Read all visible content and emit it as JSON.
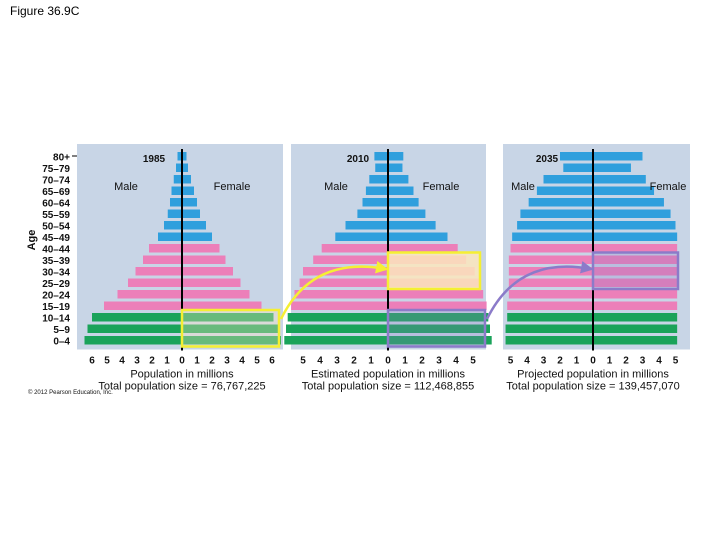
{
  "figure_title": "Figure 36.9C",
  "copyright": "© 2012 Pearson Education, Inc.",
  "chart_data": {
    "type": "bar",
    "subtype": "population-pyramid",
    "ylabel": "Age",
    "age_groups": [
      "80+",
      "75–79",
      "70–74",
      "65–69",
      "60–64",
      "55–59",
      "50–54",
      "45–49",
      "40–44",
      "35–39",
      "30–34",
      "25–29",
      "20–24",
      "15–19",
      "10–14",
      "5–9",
      "0–4"
    ],
    "colors": {
      "older": "#2f9fdd",
      "reproductive": "#ec7fb9",
      "young": "#1aa35a",
      "panel": "#c8d5e6",
      "highlight_yellow": "#f5ef33",
      "highlight_purple": "#8b7bc9",
      "highlight_fill": "#fbe6bc"
    },
    "pyramids": [
      {
        "year": "1985",
        "male_label": "Male",
        "female_label": "Female",
        "xlabel": "Population in millions",
        "total_label": "Total population size = 76,767,225",
        "x_ticks": [
          "6",
          "5",
          "4",
          "3",
          "2",
          "1",
          "0",
          "1",
          "2",
          "3",
          "4",
          "5",
          "6"
        ],
        "male": [
          0.3,
          0.4,
          0.55,
          0.7,
          0.8,
          0.95,
          1.2,
          1.6,
          2.2,
          2.6,
          3.1,
          3.6,
          4.3,
          5.2,
          6.0,
          6.3,
          6.5
        ],
        "female": [
          0.3,
          0.4,
          0.6,
          0.8,
          1.0,
          1.2,
          1.6,
          2.0,
          2.5,
          2.9,
          3.4,
          3.9,
          4.5,
          5.3,
          6.1,
          6.4,
          6.6
        ]
      },
      {
        "year": "2010",
        "male_label": "Male",
        "female_label": "Female",
        "xlabel": "Estimated population in millions",
        "total_label": "Total population size = 112,468,855",
        "x_ticks": [
          "5",
          "4",
          "3",
          "2",
          "1",
          "0",
          "1",
          "2",
          "3",
          "4",
          "5"
        ],
        "male": [
          0.8,
          0.75,
          1.1,
          1.3,
          1.5,
          1.8,
          2.5,
          3.1,
          3.9,
          4.4,
          5.0,
          5.2,
          5.5,
          5.7,
          5.9,
          6.0,
          6.1
        ],
        "female": [
          0.9,
          0.85,
          1.2,
          1.5,
          1.8,
          2.2,
          2.8,
          3.5,
          4.1,
          4.6,
          5.1,
          5.4,
          5.6,
          5.8,
          5.9,
          6.0,
          6.1
        ]
      },
      {
        "year": "2035",
        "male_label": "Male",
        "female_label": "Female",
        "xlabel": "Projected population in millions",
        "total_label": "Total population size = 139,457,070",
        "x_ticks": [
          "5",
          "4",
          "3",
          "2",
          "1",
          "0",
          "1",
          "2",
          "3",
          "4",
          "5"
        ],
        "male": [
          2.0,
          1.8,
          3.0,
          3.4,
          3.9,
          4.4,
          4.6,
          4.9,
          5.0,
          5.1,
          5.1,
          5.1,
          5.1,
          5.2,
          5.2,
          5.3,
          5.3
        ],
        "female": [
          3.0,
          2.3,
          3.2,
          3.7,
          4.3,
          4.7,
          5.0,
          5.1,
          5.1,
          5.1,
          5.1,
          5.1,
          5.1,
          5.1,
          5.1,
          5.1,
          5.1
        ]
      }
    ],
    "annotations": [
      {
        "from": "1985 ages 0–14",
        "to": "2010 ages 25–39",
        "color": "yellow"
      },
      {
        "from": "2010 ages 0–14",
        "to": "2035 ages 25–39",
        "color": "purple"
      }
    ]
  }
}
